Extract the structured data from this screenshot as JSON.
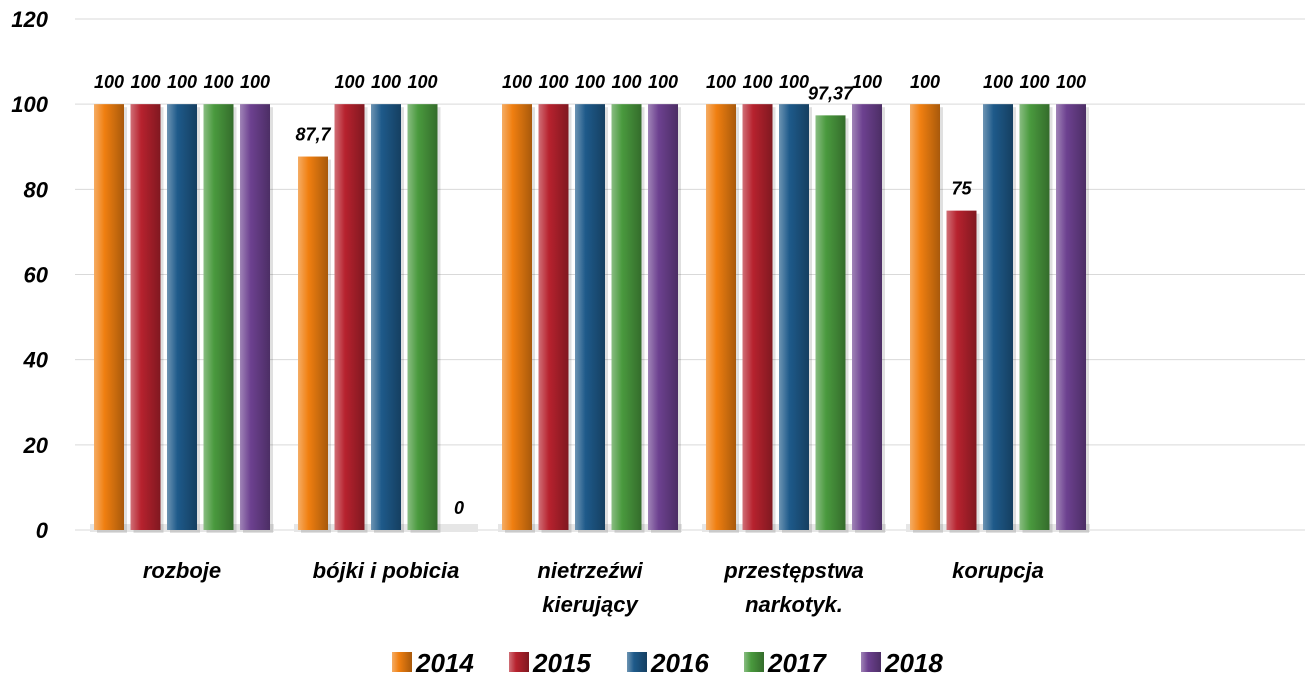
{
  "chart_data": {
    "type": "bar",
    "categories": [
      [
        "rozboje"
      ],
      [
        "bójki i pobicia"
      ],
      [
        "nietrzeźwi",
        "kierujący"
      ],
      [
        "przestępstwa",
        "narkotyk."
      ],
      [
        "korupcja"
      ]
    ],
    "series": [
      {
        "name": "2014",
        "color": "#f07f10",
        "values": [
          100,
          87.7,
          100,
          100,
          100
        ],
        "labels": [
          "100",
          "87,7",
          "100",
          "100",
          "100"
        ]
      },
      {
        "name": "2015",
        "color": "#b7222e",
        "values": [
          100,
          100,
          100,
          100,
          75
        ],
        "labels": [
          "100",
          "100",
          "100",
          "100",
          "75"
        ]
      },
      {
        "name": "2016",
        "color": "#1e5a8a",
        "values": [
          100,
          100,
          100,
          100,
          100
        ],
        "labels": [
          "100",
          "100",
          "100",
          "100",
          "100"
        ]
      },
      {
        "name": "2017",
        "color": "#4a9a3e",
        "values": [
          100,
          100,
          100,
          97.37,
          100
        ],
        "labels": [
          "100",
          "100",
          "100",
          "97,37",
          "100"
        ]
      },
      {
        "name": "2018",
        "color": "#6d4190",
        "values": [
          100,
          0,
          100,
          100,
          100
        ],
        "labels": [
          "100",
          "0",
          "100",
          "100",
          "100"
        ]
      }
    ],
    "yticks": [
      "0",
      "20",
      "40",
      "60",
      "80",
      "100",
      "120"
    ],
    "ylim": [
      0,
      120
    ],
    "grid": true,
    "legend_position": "bottom",
    "title": "",
    "xlabel": "",
    "ylabel": ""
  }
}
